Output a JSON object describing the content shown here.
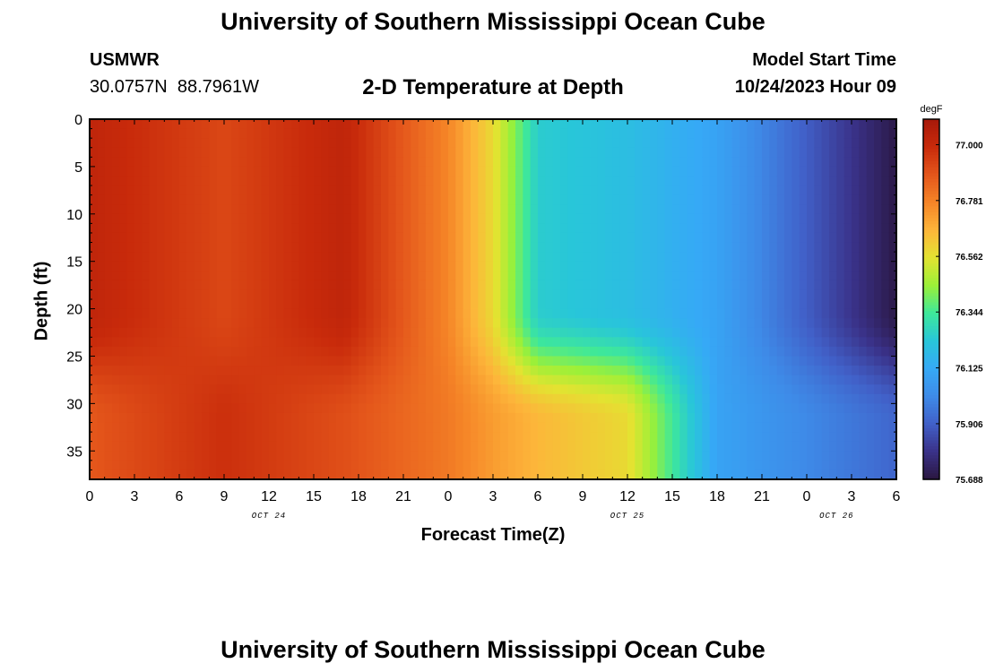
{
  "header": {
    "title": "University of Southern Mississippi Ocean Cube",
    "station_id": "USMWR",
    "station_coords": "30.0757N  88.7961W",
    "plot_title": "2-D Temperature at Depth",
    "model_label": "Model Start Time",
    "model_time": "10/24/2023 Hour 09",
    "footer_title": "University of Southern Mississippi Ocean Cube"
  },
  "chart_data": {
    "type": "heatmap",
    "title": "2-D Temperature at Depth",
    "xlabel": "Forecast Time(Z)",
    "ylabel": "Depth (ft)",
    "x_ticks": [
      "0",
      "3",
      "6",
      "9",
      "12",
      "15",
      "18",
      "21",
      "0",
      "3",
      "6",
      "9",
      "12",
      "15",
      "18",
      "21",
      "0",
      "3",
      "6"
    ],
    "x_ticks_hours": [
      0,
      3,
      6,
      9,
      12,
      15,
      18,
      21,
      24,
      27,
      30,
      33,
      36,
      39,
      42,
      45,
      48,
      51,
      54
    ],
    "date_labels": [
      {
        "text": "OCT 24",
        "hour": 12
      },
      {
        "text": "OCT 25",
        "hour": 36
      },
      {
        "text": "OCT 26",
        "hour": 50
      }
    ],
    "xlim": [
      0,
      54
    ],
    "y_ticks": [
      0,
      5,
      10,
      15,
      20,
      25,
      30,
      35
    ],
    "ylim": [
      0,
      38
    ],
    "y_inverted": true,
    "colorbar": {
      "unit": "degF",
      "labels": [
        "77.000",
        "76.781",
        "76.562",
        "76.344",
        "76.125",
        "75.906",
        "75.688"
      ],
      "min": 75.688,
      "max": 77.1,
      "colors": [
        "#2a1640",
        "#3a3289",
        "#4160c8",
        "#3e8be8",
        "#36a9f6",
        "#28c6d9",
        "#3ee89a",
        "#9cf038",
        "#e3e331",
        "#fdb53a",
        "#f58427",
        "#e4561b",
        "#c82a0b",
        "#a7190a"
      ]
    },
    "description_time_key": "hours since 00Z Oct 24",
    "temperature_profile": [
      {
        "hour": 0,
        "top": 77.02,
        "bottom": 76.88
      },
      {
        "hour": 9,
        "top": 76.92,
        "bottom": 76.98
      },
      {
        "hour": 17,
        "top": 77.02,
        "bottom": 76.9
      },
      {
        "hour": 24,
        "top": 76.77,
        "bottom": 76.8
      },
      {
        "hour": 27,
        "top": 76.58,
        "bottom": 76.72
      },
      {
        "hour": 30,
        "top": 76.25,
        "bottom": 76.66
      },
      {
        "hour": 36,
        "top": 76.2,
        "bottom": 76.58
      },
      {
        "hour": 42,
        "top": 76.1,
        "bottom": 76.1
      },
      {
        "hour": 54,
        "top": 75.7,
        "bottom": 75.92
      }
    ]
  }
}
